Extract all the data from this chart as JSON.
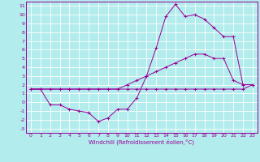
{
  "xlabel": "Windchill (Refroidissement éolien,°C)",
  "bg_color": "#b2ecec",
  "grid_color": "#ffffff",
  "line_color": "#990099",
  "xlim": [
    -0.5,
    23.5
  ],
  "ylim": [
    -3.5,
    11.5
  ],
  "xticks": [
    0,
    1,
    2,
    3,
    4,
    5,
    6,
    7,
    8,
    9,
    10,
    11,
    12,
    13,
    14,
    15,
    16,
    17,
    18,
    19,
    20,
    21,
    22,
    23
  ],
  "yticks": [
    -3,
    -2,
    -1,
    0,
    1,
    2,
    3,
    4,
    5,
    6,
    7,
    8,
    9,
    10,
    11
  ],
  "line1_x": [
    0,
    1,
    2,
    3,
    4,
    5,
    6,
    7,
    8,
    9,
    10,
    11,
    12,
    13,
    14,
    15,
    16,
    17,
    18,
    19,
    20,
    21,
    22,
    23
  ],
  "line1_y": [
    1.5,
    1.5,
    1.5,
    1.5,
    1.5,
    1.5,
    1.5,
    1.5,
    1.5,
    1.5,
    1.5,
    1.5,
    1.5,
    1.5,
    1.5,
    1.5,
    1.5,
    1.5,
    1.5,
    1.5,
    1.5,
    1.5,
    1.5,
    2.0
  ],
  "line2_x": [
    0,
    1,
    2,
    3,
    4,
    5,
    6,
    7,
    8,
    9,
    10,
    11,
    12,
    13,
    14,
    15,
    16,
    17,
    18,
    19,
    20,
    21,
    22,
    23
  ],
  "line2_y": [
    1.5,
    1.5,
    1.5,
    1.5,
    1.5,
    1.5,
    1.5,
    1.5,
    1.5,
    1.5,
    2.0,
    2.5,
    3.0,
    3.5,
    4.0,
    4.5,
    5.0,
    5.5,
    5.5,
    5.0,
    5.0,
    2.5,
    2.0,
    2.0
  ],
  "line3_x": [
    0,
    1,
    2,
    3,
    4,
    5,
    6,
    7,
    8,
    9,
    10,
    11,
    12,
    13,
    14,
    15,
    16,
    17,
    18,
    19,
    20,
    21,
    22,
    23
  ],
  "line3_y": [
    1.5,
    1.5,
    -0.3,
    -0.3,
    -0.8,
    -1.0,
    -1.2,
    -2.2,
    -1.8,
    -0.8,
    -0.8,
    0.5,
    3.0,
    6.2,
    9.8,
    11.2,
    9.8,
    10.0,
    9.5,
    8.5,
    7.5,
    7.5,
    2.0,
    2.0
  ],
  "marker": "+",
  "marker_size": 3,
  "linewidth": 0.7,
  "tick_fontsize": 4.5,
  "xlabel_fontsize": 5
}
